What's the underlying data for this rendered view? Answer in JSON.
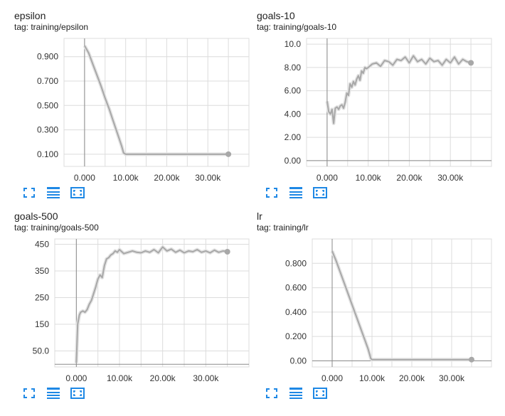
{
  "icons": [
    "expand-icon",
    "data-table-icon",
    "fit-domain-icon"
  ],
  "colors": {
    "line": "#a8a8a8",
    "smooth_shadow": "#e3e3e3",
    "raw": "#ececec",
    "grid": "#dcdcdc",
    "axis": "#8a8a8a",
    "icon": "#1e88e5"
  },
  "chart_data": [
    {
      "type": "line",
      "title": "epsilon",
      "tag": "tag: training/epsilon",
      "xlim": [
        -5000,
        40000
      ],
      "ylim": [
        0,
        1.05
      ],
      "xticks": [
        0,
        10000,
        20000,
        30000
      ],
      "xtick_labels": [
        "0.000",
        "10.00k",
        "20.00k",
        "30.00k"
      ],
      "yticks": [
        0.1,
        0.3,
        0.5,
        0.7,
        0.9
      ],
      "ytick_labels": [
        "0.100",
        "0.300",
        "0.500",
        "0.700",
        "0.900"
      ],
      "grid": true,
      "x": [
        0,
        1000,
        2000,
        3000,
        4000,
        5000,
        6000,
        7000,
        8000,
        9000,
        9500,
        10000,
        20000,
        30000,
        35000
      ],
      "y": [
        0.99,
        0.93,
        0.84,
        0.75,
        0.66,
        0.56,
        0.47,
        0.37,
        0.27,
        0.17,
        0.11,
        0.1,
        0.1,
        0.1,
        0.1
      ]
    },
    {
      "type": "line",
      "title": "goals-10",
      "tag": "tag: training/goals-10",
      "xlim": [
        -5000,
        40000
      ],
      "ylim": [
        -0.5,
        10.5
      ],
      "xticks": [
        0,
        10000,
        20000,
        30000
      ],
      "xtick_labels": [
        "0.000",
        "10.00k",
        "20.00k",
        "30.00k"
      ],
      "yticks": [
        0,
        2,
        4,
        6,
        8,
        10
      ],
      "ytick_labels": [
        "0.00",
        "2.00",
        "4.00",
        "6.00",
        "8.00",
        "10.0"
      ],
      "grid": true,
      "x": [
        0,
        400,
        800,
        1200,
        1600,
        2000,
        2400,
        2800,
        3200,
        3600,
        4000,
        4400,
        4800,
        5200,
        5600,
        6000,
        6400,
        6800,
        7200,
        7600,
        8000,
        8400,
        8800,
        9200,
        9600,
        10000,
        11000,
        12000,
        13000,
        14000,
        15000,
        16000,
        17000,
        18000,
        19000,
        20000,
        21000,
        22000,
        23000,
        24000,
        25000,
        26000,
        27000,
        28000,
        29000,
        30000,
        31000,
        32000,
        33000,
        34000,
        35000
      ],
      "y": [
        5.1,
        4.2,
        4.0,
        4.4,
        3.2,
        4.5,
        4.6,
        4.4,
        4.7,
        4.8,
        4.5,
        5.0,
        5.8,
        5.6,
        6.6,
        6.3,
        6.8,
        6.5,
        7.0,
        7.3,
        6.9,
        7.7,
        7.5,
        8.0,
        7.9,
        8.0,
        8.3,
        8.4,
        8.1,
        8.6,
        8.5,
        8.2,
        8.7,
        8.6,
        8.9,
        8.4,
        9.0,
        8.5,
        8.7,
        8.3,
        8.8,
        8.5,
        8.6,
        8.2,
        8.7,
        8.4,
        8.9,
        8.3,
        8.7,
        8.5,
        8.4
      ]
    },
    {
      "type": "line",
      "title": "goals-500",
      "tag": "tag: training/goals-500",
      "xlim": [
        -5000,
        40000
      ],
      "ylim": [
        -10,
        470
      ],
      "xticks": [
        0,
        10000,
        20000,
        30000
      ],
      "xtick_labels": [
        "0.000",
        "10.00k",
        "20.00k",
        "30.00k"
      ],
      "yticks": [
        50,
        150,
        250,
        350,
        450
      ],
      "ytick_labels": [
        "50.0",
        "150",
        "250",
        "350",
        "450"
      ],
      "grid": true,
      "x": [
        0,
        300,
        700,
        1000,
        1500,
        2000,
        2500,
        3000,
        3500,
        4000,
        4500,
        5000,
        5500,
        6000,
        6500,
        7000,
        7500,
        8000,
        8500,
        9000,
        9500,
        10000,
        11000,
        12000,
        13000,
        14000,
        15000,
        16000,
        17000,
        18000,
        19000,
        20000,
        21000,
        22000,
        23000,
        24000,
        25000,
        26000,
        27000,
        28000,
        29000,
        30000,
        31000,
        32000,
        33000,
        34000,
        35000
      ],
      "y": [
        5,
        150,
        185,
        195,
        200,
        195,
        205,
        225,
        240,
        265,
        290,
        320,
        335,
        325,
        370,
        395,
        400,
        410,
        415,
        425,
        420,
        430,
        415,
        420,
        425,
        420,
        418,
        425,
        420,
        430,
        418,
        440,
        425,
        432,
        420,
        428,
        418,
        425,
        422,
        430,
        420,
        425,
        418,
        428,
        420,
        425,
        422
      ]
    },
    {
      "type": "line",
      "title": "lr",
      "tag": "tag: training/lr",
      "xlim": [
        -5000,
        40000
      ],
      "ylim": [
        -0.05,
        1.0
      ],
      "xticks": [
        0,
        10000,
        20000,
        30000
      ],
      "xtick_labels": [
        "0.000",
        "10.00k",
        "20.00k",
        "30.00k"
      ],
      "yticks": [
        0,
        0.2,
        0.4,
        0.6,
        0.8
      ],
      "ytick_labels": [
        "0.00",
        "0.200",
        "0.400",
        "0.600",
        "0.800"
      ],
      "grid": true,
      "x": [
        0,
        1000,
        2000,
        3000,
        4000,
        5000,
        6000,
        7000,
        8000,
        9000,
        9700,
        10000,
        20000,
        30000,
        35000
      ],
      "y": [
        0.9,
        0.82,
        0.73,
        0.64,
        0.55,
        0.46,
        0.37,
        0.28,
        0.19,
        0.1,
        0.02,
        0.01,
        0.01,
        0.01,
        0.01
      ]
    }
  ]
}
